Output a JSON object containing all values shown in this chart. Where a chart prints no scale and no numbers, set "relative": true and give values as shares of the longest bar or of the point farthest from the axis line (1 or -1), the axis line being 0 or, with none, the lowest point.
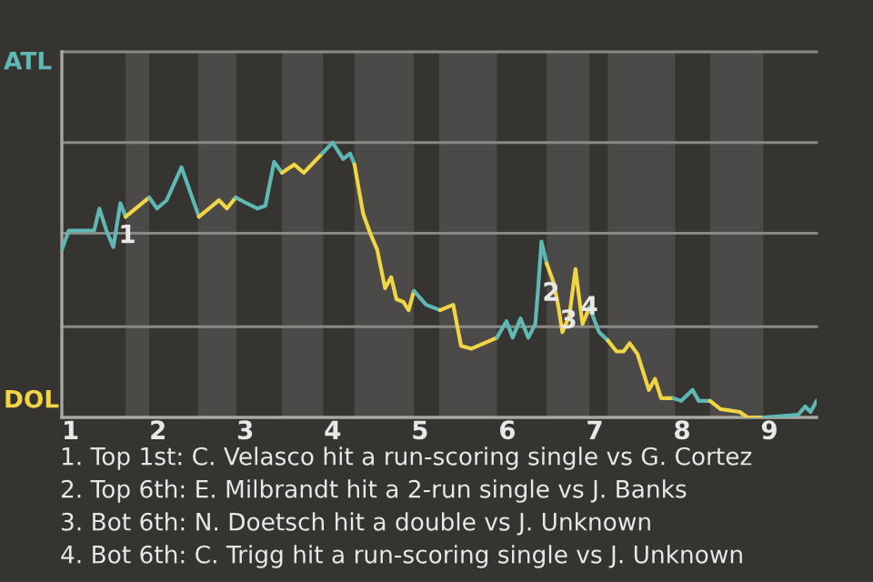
{
  "chart_data": {
    "type": "line",
    "relative": true,
    "xlim": [
      0.9,
      9.54
    ],
    "xticks": [
      1,
      2,
      3,
      4,
      5,
      6,
      7,
      8,
      9
    ],
    "ref_lines": [
      {
        "axis": "y",
        "value": 0.33,
        "color": "#8a8986"
      },
      {
        "axis": "y",
        "value": 0.67,
        "color": "#8a8986"
      },
      {
        "axis": "y",
        "value": 1.0,
        "color": "#8a8986"
      },
      {
        "axis": "y",
        "value": 1.33,
        "color": "#8a8986"
      }
    ],
    "bands": [
      {
        "axis": "x",
        "from": 1.63,
        "to": 1.9,
        "color": "#4b4a48"
      },
      {
        "axis": "x",
        "from": 2.46,
        "to": 2.9,
        "color": "#4b4a48"
      },
      {
        "axis": "x",
        "from": 3.42,
        "to": 3.89,
        "color": "#4b4a48"
      },
      {
        "axis": "x",
        "from": 4.25,
        "to": 4.93,
        "color": "#4b4a48"
      },
      {
        "axis": "x",
        "from": 5.22,
        "to": 5.88,
        "color": "#4b4a48"
      },
      {
        "axis": "x",
        "from": 6.45,
        "to": 6.94,
        "color": "#4b4a48"
      },
      {
        "axis": "x",
        "from": 7.15,
        "to": 7.92,
        "color": "#4b4a48"
      },
      {
        "axis": "x",
        "from": 8.32,
        "to": 8.93,
        "color": "#4b4a48"
      }
    ],
    "series": [
      {
        "color": "#5fb8b4",
        "x": [
          0.9,
          0.98,
          1.27,
          1.33,
          1.41,
          1.49,
          1.57,
          1.63
        ],
        "values": [
          0.61,
          0.68,
          0.68,
          0.76,
          0.68,
          0.62,
          0.78,
          0.73
        ]
      },
      {
        "color": "#f2d544",
        "x": [
          1.63,
          1.9
        ],
        "values": [
          0.73,
          0.8
        ]
      },
      {
        "color": "#5fb8b4",
        "x": [
          1.9,
          1.99,
          2.1,
          2.27,
          2.47
        ],
        "values": [
          0.8,
          0.76,
          0.79,
          0.91,
          0.73
        ]
      },
      {
        "color": "#f2d544",
        "x": [
          2.47,
          2.7,
          2.79,
          2.89
        ],
        "values": [
          0.73,
          0.79,
          0.76,
          0.8
        ]
      },
      {
        "color": "#5fb8b4",
        "x": [
          2.89,
          3.01,
          3.14,
          3.23,
          3.33,
          3.42
        ],
        "values": [
          0.8,
          0.78,
          0.76,
          0.77,
          0.93,
          0.89
        ]
      },
      {
        "color": "#f2d544",
        "x": [
          3.42,
          3.56,
          3.67,
          3.88
        ],
        "values": [
          0.89,
          0.92,
          0.89,
          0.96
        ]
      },
      {
        "color": "#5fb8b4",
        "x": [
          3.88,
          4.0,
          4.12,
          4.2,
          4.25
        ],
        "values": [
          0.96,
          1.0,
          0.94,
          0.96,
          0.92
        ]
      },
      {
        "color": "#f2d544",
        "x": [
          4.25,
          4.35,
          4.43,
          4.51,
          4.6,
          4.67,
          4.73,
          4.81,
          4.87,
          4.93
        ],
        "values": [
          0.92,
          0.74,
          0.67,
          0.61,
          0.47,
          0.51,
          0.43,
          0.42,
          0.39,
          0.46
        ]
      },
      {
        "color": "#5fb8b4",
        "x": [
          4.93,
          5.07,
          5.23
        ],
        "values": [
          0.46,
          0.41,
          0.39
        ]
      },
      {
        "color": "#f2d544",
        "x": [
          5.23,
          5.38,
          5.47,
          5.59,
          5.88
        ],
        "values": [
          0.39,
          0.41,
          0.26,
          0.25,
          0.29
        ]
      },
      {
        "color": "#5fb8b4",
        "x": [
          5.88,
          5.99,
          6.06,
          6.15,
          6.24,
          6.32,
          6.35,
          6.39,
          6.45
        ],
        "values": [
          0.29,
          0.35,
          0.29,
          0.36,
          0.29,
          0.34,
          0.46,
          0.64,
          0.56
        ]
      },
      {
        "color": "#f2d544",
        "x": [
          6.45,
          6.53,
          6.58,
          6.63,
          6.71,
          6.78,
          6.86,
          6.94
        ],
        "values": [
          0.56,
          0.49,
          0.41,
          0.31,
          0.37,
          0.54,
          0.34,
          0.4
        ]
      },
      {
        "color": "#5fb8b4",
        "x": [
          6.94,
          7.05,
          7.15
        ],
        "values": [
          0.4,
          0.31,
          0.28
        ]
      },
      {
        "color": "#f2d544",
        "x": [
          7.15,
          7.25,
          7.33,
          7.4,
          7.49,
          7.62,
          7.69,
          7.76,
          7.9
        ],
        "values": [
          0.28,
          0.24,
          0.24,
          0.27,
          0.23,
          0.1,
          0.14,
          0.07,
          0.07
        ]
      },
      {
        "color": "#5fb8b4",
        "x": [
          7.9,
          7.99,
          8.12,
          8.19,
          8.32
        ],
        "values": [
          0.07,
          0.06,
          0.1,
          0.06,
          0.06
        ]
      },
      {
        "color": "#f2d544",
        "x": [
          8.32,
          8.44,
          8.66,
          8.75,
          8.93
        ],
        "values": [
          0.06,
          0.03,
          0.02,
          0.0,
          0.0
        ]
      },
      {
        "color": "#5fb8b4",
        "x": [
          8.93,
          9.33,
          9.41,
          9.47,
          9.54
        ],
        "values": [
          0.0,
          0.01,
          0.04,
          0.02,
          0.06
        ]
      }
    ],
    "annotations": [
      "ATL",
      "DOL",
      {
        "text": "1",
        "x": 1.65,
        "y": 0.66
      },
      {
        "text": "2",
        "x": 6.5,
        "y": 0.45
      },
      {
        "text": "3",
        "x": 6.7,
        "y": 0.35
      },
      {
        "text": "4",
        "x": 6.94,
        "y": 0.4
      },
      "1. Top 1st: C. Velasco hit a run-scoring single vs G. Cortez",
      "2. Top 6th: E. Milbrandt hit a 2-run single vs J. Banks",
      "3. Bot 6th: N. Doetsch hit a double vs J. Unknown",
      "4. Bot 6th: C. Trigg hit a run-scoring single vs J. Unknown"
    ]
  }
}
